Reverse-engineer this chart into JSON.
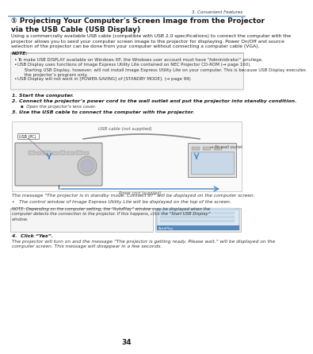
{
  "page_number": "34",
  "chapter": "3. Convenient Features",
  "title": "① Projecting Your Computer's Screen Image from the Projector\nvia the USB Cable (USB Display)",
  "body_text": "Using a commercially available USB cable (compatible with USB 2.0 specifications) to connect the computer with the\nprojector allows you to send your computer screen image to the projector for displaying. Power On/Off and source\nselection of the projector can be done from your computer without connecting a computer cable (VGA).",
  "note_header": "NOTE:",
  "note_bullets": [
    "To make USB DISPLAY available on Windows XP, the Windows user account must have “Administrator” privilege.",
    "USB Display uses functions of Image Express Utility Lite contained on NEC Projector CD-ROM (→ page 160).\n     Starting USB Display, however, will not install Image Express Utility Lite on your computer. This is because USB Display executes\n     the projector’s program only.",
    "USB Display will not work in [POWER-SAVING] of [STANDBY MODE]. (→ page 99)"
  ],
  "steps": [
    "Start the computer.",
    "Connect the projector’s power cord to the wall outlet and put the projector into standby condition.",
    "Open the projector’s lens cover.",
    "Use the USB cable to connect the computer with the projector."
  ],
  "diagram_label_usb_cable": "USB cable (not supplied)",
  "diagram_label_usb_pc": "USB (PC)",
  "diagram_label_wall": "→ To wall outlet",
  "diagram_label_power": "Power cord (supplied)",
  "message1": "The message “The projector is in standby mode. Connect it?” will be displayed on the computer screen.",
  "message2": "•   The control window of Image Express Utility Lite will be displayed on the top of the screen.",
  "note2_text": "NOTE: Depending on the computer setting, the “AutoPlay” window may be displayed when the\ncomputer detects the connection to the projector. If this happens, click the “Start USB Display”\nwindow.",
  "step4_header": "4.  Click “Yes”.",
  "step4_desc": "The projector will turn on and the message “The projector is getting ready. Please wait.” will be displayed on the\ncomputer screen. This message will disappear in a few seconds.",
  "bg_color": "#ffffff",
  "text_color": "#1a1a1a",
  "header_line_color": "#5b9bd5",
  "note_bg": "#f5f5f5",
  "italic_color": "#333333"
}
